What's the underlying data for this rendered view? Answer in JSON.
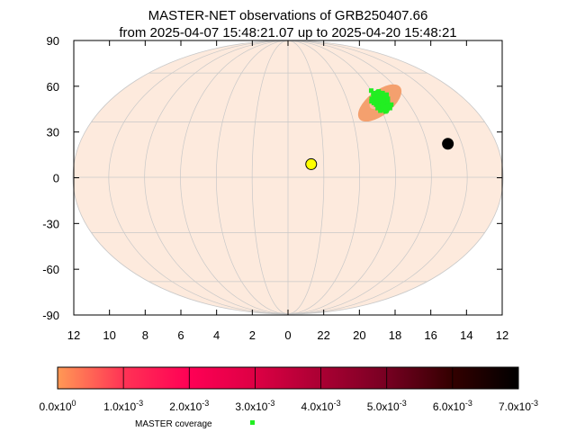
{
  "chart_data": {
    "type": "scatter",
    "projection": "mollweide",
    "title": "MASTER-NET observations of GRB250407.66",
    "subtitle": "from 2025-04-07 15:48:21.07 up to 2025-04-20 15:48:21",
    "x_axis": {
      "unit": "hours",
      "range": [
        12,
        -12
      ],
      "ticks": [
        "12",
        "10",
        "8",
        "6",
        "4",
        "2",
        "0",
        "22",
        "20",
        "18",
        "16",
        "14",
        "12"
      ],
      "ticks_ra": [
        12,
        10,
        8,
        6,
        4,
        2,
        0,
        -2,
        -4,
        -6,
        -8,
        -10,
        -12
      ]
    },
    "y_axis": {
      "unit": "degrees",
      "range": [
        -90,
        90
      ],
      "ticks": [
        90,
        60,
        30,
        0,
        -30,
        -60,
        -90
      ]
    },
    "grid": true,
    "background_color": "#fdeadd",
    "grid_color": "#c8c8c8",
    "error_region": {
      "outer": {
        "ra": 6.1,
        "dec": 41,
        "semi_major_deg": 17,
        "semi_minor_deg": 8,
        "angle_deg": -38,
        "color": "#f4a06e"
      },
      "inner": {
        "ra": 6.1,
        "dec": 42,
        "semi_major_deg": 7,
        "semi_minor_deg": 4,
        "angle_deg": -35,
        "color": "#ffb89a"
      }
    },
    "coverage": {
      "name": "MASTER coverage",
      "color": "#22ee22",
      "center": {
        "ra": 6.0,
        "dec": 42
      },
      "points": [
        [
          6.4,
          47.5
        ],
        [
          6.2,
          47
        ],
        [
          6.0,
          46.5
        ],
        [
          6.5,
          46
        ],
        [
          6.3,
          45.5
        ],
        [
          6.1,
          45
        ],
        [
          5.9,
          44.5
        ],
        [
          6.6,
          44.5
        ],
        [
          6.4,
          44
        ],
        [
          6.2,
          43.5
        ],
        [
          6.0,
          43
        ],
        [
          5.8,
          42.5
        ],
        [
          6.5,
          43
        ],
        [
          6.3,
          42.5
        ],
        [
          6.1,
          42
        ],
        [
          5.9,
          41.5
        ],
        [
          6.4,
          41.5
        ],
        [
          6.2,
          41
        ],
        [
          6.0,
          40.5
        ],
        [
          5.8,
          40
        ],
        [
          6.6,
          40.5
        ],
        [
          6.3,
          40
        ],
        [
          6.1,
          39.5
        ],
        [
          5.9,
          39
        ],
        [
          6.5,
          39
        ],
        [
          6.2,
          38.5
        ],
        [
          6.0,
          38
        ],
        [
          6.4,
          37.5
        ],
        [
          6.1,
          37
        ],
        [
          6.3,
          36.5
        ],
        [
          6.7,
          45
        ],
        [
          5.7,
          43.5
        ],
        [
          6.7,
          42
        ],
        [
          5.7,
          41
        ],
        [
          6.8,
          43.5
        ],
        [
          6.0,
          44
        ],
        [
          6.2,
          39.5
        ],
        [
          6.4,
          38.5
        ],
        [
          5.8,
          38
        ],
        [
          6.6,
          38
        ],
        [
          6.2,
          36
        ],
        [
          6.5,
          48
        ],
        [
          6.7,
          47
        ],
        [
          6.0,
          48.5
        ],
        [
          5.9,
          36.5
        ],
        [
          6.8,
          40
        ],
        [
          5.6,
          42
        ],
        [
          6.9,
          46
        ]
      ]
    },
    "markers": [
      {
        "name": "sun",
        "ra": 1.3,
        "dec": 7,
        "color": "#ffff00",
        "stroke": "#000000"
      },
      {
        "name": "moon",
        "ra": 9.2,
        "dec": 18,
        "color": "#000000",
        "stroke": "#000000"
      }
    ],
    "colorbar": {
      "min": 0,
      "max": 0.007,
      "colors": [
        "#ff9955",
        "#ff3355",
        "#ff0055",
        "#dd0044",
        "#aa0033",
        "#770022",
        "#330000",
        "#000000"
      ],
      "tick_values": [
        0,
        0.001,
        0.002,
        0.003,
        0.004,
        0.005,
        0.006,
        0.007
      ],
      "tick_labels": [
        {
          "mant": "0.0x10",
          "exp": "0"
        },
        {
          "mant": "1.0x10",
          "exp": "-3"
        },
        {
          "mant": "2.0x10",
          "exp": "-3"
        },
        {
          "mant": "3.0x10",
          "exp": "-3"
        },
        {
          "mant": "4.0x10",
          "exp": "-3"
        },
        {
          "mant": "5.0x10",
          "exp": "-3"
        },
        {
          "mant": "6.0x10",
          "exp": "-3"
        },
        {
          "mant": "7.0x10",
          "exp": "-3"
        }
      ]
    },
    "legend": {
      "position": "bottom-center",
      "entries": [
        "MASTER coverage"
      ]
    }
  }
}
